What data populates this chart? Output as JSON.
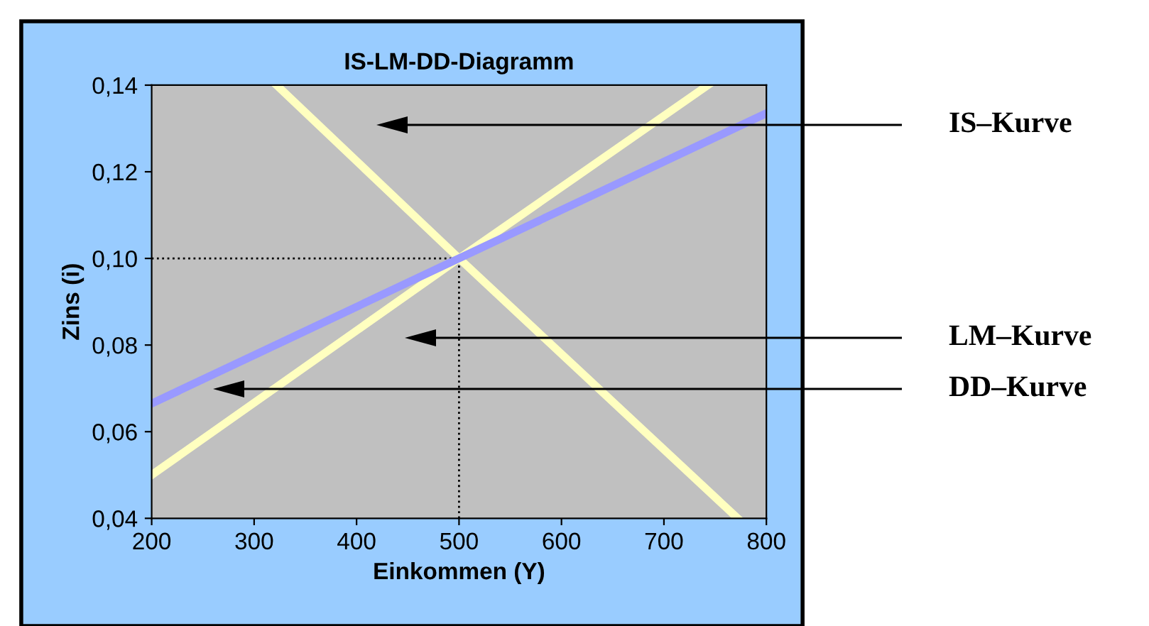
{
  "chart_data": {
    "type": "line",
    "title": "IS-LM-DD-Diagramm",
    "xlabel": "Einkommen (Y)",
    "ylabel": "Zins (i)",
    "series": [
      {
        "color": "#ffffc0",
        "x": [
          322,
          500,
          772
        ],
        "values": [
          0.14,
          0.1,
          0.04
        ]
      },
      {
        "color": "#ffffc0",
        "x": [
          200,
          500,
          743
        ],
        "values": [
          0.05,
          0.1,
          0.14
        ]
      },
      {
        "color": "#9999ff",
        "x": [
          200,
          500,
          800
        ],
        "values": [
          0.0665,
          0.1,
          0.1335
        ]
      }
    ],
    "xlim": [
      200,
      800
    ],
    "xticks": [
      200,
      300,
      400,
      500,
      600,
      700,
      800
    ],
    "ylim": [
      0.04,
      0.14
    ],
    "yticks": [
      {
        "value": 0.04,
        "label": "0,04"
      },
      {
        "value": 0.06,
        "label": "0,06"
      },
      {
        "value": 0.08,
        "label": "0,08"
      },
      {
        "value": 0.1,
        "label": "0,10"
      },
      {
        "value": 0.12,
        "label": "0,12"
      },
      {
        "value": 0.14,
        "label": "0,14"
      }
    ],
    "ref_lines": [
      {
        "axis": "x",
        "value": 500,
        "color": "#000000",
        "line_style": "dotted"
      },
      {
        "axis": "y",
        "value": 0.1,
        "color": "#000000",
        "line_style": "dotted"
      }
    ],
    "annotations": [
      "IS–Kurve",
      "LM–Kurve",
      "DD–Kurve"
    ],
    "grid": false,
    "marker": "none",
    "line_style": "solid"
  }
}
